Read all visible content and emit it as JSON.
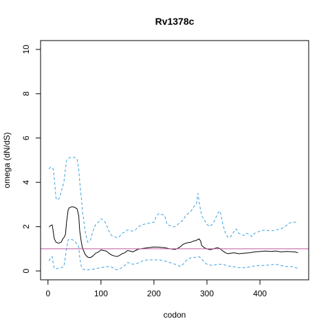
{
  "chart_data": {
    "type": "line",
    "title": "Rv1378c",
    "xlabel": "codon",
    "ylabel": "omega (dN/dS)",
    "xlim": [
      -14,
      492
    ],
    "ylim": [
      -0.4,
      10.4
    ],
    "x_ticks": [
      0,
      100,
      200,
      300,
      400
    ],
    "y_ticks": [
      0,
      2,
      4,
      6,
      8,
      10
    ],
    "reference_line": {
      "y": 1,
      "color": "#c0569e"
    },
    "grid": false,
    "legend": "none",
    "series": [
      {
        "style": "solid",
        "color": "#000000",
        "points": [
          [
            2,
            1.98
          ],
          [
            5,
            2.05
          ],
          [
            8,
            2.08
          ],
          [
            10,
            1.75
          ],
          [
            12,
            1.45
          ],
          [
            15,
            1.3
          ],
          [
            20,
            1.25
          ],
          [
            25,
            1.3
          ],
          [
            28,
            1.45
          ],
          [
            30,
            1.5
          ],
          [
            33,
            1.65
          ],
          [
            35,
            2.2
          ],
          [
            38,
            2.75
          ],
          [
            40,
            2.85
          ],
          [
            45,
            2.9
          ],
          [
            50,
            2.88
          ],
          [
            55,
            2.8
          ],
          [
            58,
            2.5
          ],
          [
            60,
            1.8
          ],
          [
            63,
            1.3
          ],
          [
            65,
            1.05
          ],
          [
            70,
            0.75
          ],
          [
            75,
            0.62
          ],
          [
            80,
            0.6
          ],
          [
            85,
            0.68
          ],
          [
            90,
            0.8
          ],
          [
            95,
            0.85
          ],
          [
            100,
            0.95
          ],
          [
            105,
            0.92
          ],
          [
            110,
            0.9
          ],
          [
            115,
            0.8
          ],
          [
            120,
            0.72
          ],
          [
            125,
            0.68
          ],
          [
            130,
            0.65
          ],
          [
            135,
            0.7
          ],
          [
            140,
            0.78
          ],
          [
            145,
            0.82
          ],
          [
            150,
            0.92
          ],
          [
            155,
            0.9
          ],
          [
            160,
            0.86
          ],
          [
            165,
            0.92
          ],
          [
            170,
            0.98
          ],
          [
            175,
            1.0
          ],
          [
            180,
            1.02
          ],
          [
            190,
            1.05
          ],
          [
            200,
            1.08
          ],
          [
            210,
            1.07
          ],
          [
            220,
            1.05
          ],
          [
            230,
            1.0
          ],
          [
            240,
            0.97
          ],
          [
            245,
            1.02
          ],
          [
            250,
            1.1
          ],
          [
            255,
            1.2
          ],
          [
            260,
            1.25
          ],
          [
            265,
            1.28
          ],
          [
            270,
            1.3
          ],
          [
            275,
            1.35
          ],
          [
            280,
            1.38
          ],
          [
            285,
            1.45
          ],
          [
            288,
            1.35
          ],
          [
            290,
            1.15
          ],
          [
            295,
            1.05
          ],
          [
            300,
            1.0
          ],
          [
            305,
            0.96
          ],
          [
            310,
            0.98
          ],
          [
            315,
            1.02
          ],
          [
            320,
            1.05
          ],
          [
            325,
            1.0
          ],
          [
            330,
            0.9
          ],
          [
            335,
            0.82
          ],
          [
            340,
            0.78
          ],
          [
            345,
            0.8
          ],
          [
            350,
            0.82
          ],
          [
            355,
            0.8
          ],
          [
            360,
            0.78
          ],
          [
            370,
            0.8
          ],
          [
            380,
            0.82
          ],
          [
            390,
            0.86
          ],
          [
            400,
            0.88
          ],
          [
            410,
            0.9
          ],
          [
            420,
            0.88
          ],
          [
            430,
            0.9
          ],
          [
            440,
            0.86
          ],
          [
            450,
            0.88
          ],
          [
            460,
            0.87
          ],
          [
            466,
            0.86
          ],
          [
            472,
            0.82
          ]
        ]
      },
      {
        "style": "dashed",
        "color": "#3aa0e0",
        "points": [
          [
            2,
            4.6
          ],
          [
            5,
            4.7
          ],
          [
            10,
            4.6
          ],
          [
            13,
            3.9
          ],
          [
            15,
            3.3
          ],
          [
            18,
            3.2
          ],
          [
            22,
            3.3
          ],
          [
            25,
            3.6
          ],
          [
            30,
            4.0
          ],
          [
            33,
            4.6
          ],
          [
            35,
            5.0
          ],
          [
            40,
            5.1
          ],
          [
            45,
            5.15
          ],
          [
            50,
            5.12
          ],
          [
            55,
            5.05
          ],
          [
            58,
            4.6
          ],
          [
            60,
            4.0
          ],
          [
            63,
            3.3
          ],
          [
            65,
            2.7
          ],
          [
            68,
            2.2
          ],
          [
            70,
            1.8
          ],
          [
            75,
            1.3
          ],
          [
            80,
            1.4
          ],
          [
            85,
            1.8
          ],
          [
            90,
            2.1
          ],
          [
            95,
            2.2
          ],
          [
            100,
            2.35
          ],
          [
            105,
            2.3
          ],
          [
            110,
            2.1
          ],
          [
            115,
            1.8
          ],
          [
            120,
            1.6
          ],
          [
            125,
            1.55
          ],
          [
            130,
            1.5
          ],
          [
            135,
            1.55
          ],
          [
            140,
            1.7
          ],
          [
            145,
            1.75
          ],
          [
            150,
            1.85
          ],
          [
            155,
            1.82
          ],
          [
            160,
            1.8
          ],
          [
            165,
            1.85
          ],
          [
            170,
            2.0
          ],
          [
            175,
            2.05
          ],
          [
            180,
            2.1
          ],
          [
            190,
            2.15
          ],
          [
            200,
            2.2
          ],
          [
            205,
            2.5
          ],
          [
            210,
            2.6
          ],
          [
            215,
            2.55
          ],
          [
            220,
            2.5
          ],
          [
            225,
            2.1
          ],
          [
            235,
            2.0
          ],
          [
            240,
            2.0
          ],
          [
            245,
            2.1
          ],
          [
            250,
            2.2
          ],
          [
            255,
            2.3
          ],
          [
            260,
            2.5
          ],
          [
            265,
            2.6
          ],
          [
            270,
            2.7
          ],
          [
            275,
            2.9
          ],
          [
            280,
            3.0
          ],
          [
            283,
            3.5
          ],
          [
            286,
            3.0
          ],
          [
            290,
            2.5
          ],
          [
            295,
            2.3
          ],
          [
            300,
            2.1
          ],
          [
            305,
            2.0
          ],
          [
            310,
            2.1
          ],
          [
            315,
            2.3
          ],
          [
            320,
            2.6
          ],
          [
            325,
            2.7
          ],
          [
            330,
            2.1
          ],
          [
            335,
            1.7
          ],
          [
            340,
            1.5
          ],
          [
            345,
            1.55
          ],
          [
            350,
            1.75
          ],
          [
            355,
            1.9
          ],
          [
            360,
            1.7
          ],
          [
            365,
            1.65
          ],
          [
            370,
            1.6
          ],
          [
            375,
            1.7
          ],
          [
            380,
            1.65
          ],
          [
            385,
            1.55
          ],
          [
            390,
            1.7
          ],
          [
            400,
            1.8
          ],
          [
            410,
            1.85
          ],
          [
            420,
            1.8
          ],
          [
            430,
            1.85
          ],
          [
            440,
            1.9
          ],
          [
            450,
            2.05
          ],
          [
            455,
            2.15
          ],
          [
            460,
            2.2
          ],
          [
            466,
            2.2
          ],
          [
            472,
            2.2
          ]
        ]
      },
      {
        "style": "dashed",
        "color": "#3aa0e0",
        "points": [
          [
            2,
            0.45
          ],
          [
            5,
            0.6
          ],
          [
            8,
            0.65
          ],
          [
            10,
            0.3
          ],
          [
            12,
            0.12
          ],
          [
            15,
            0.1
          ],
          [
            20,
            0.12
          ],
          [
            25,
            0.15
          ],
          [
            30,
            0.2
          ],
          [
            35,
            1.0
          ],
          [
            38,
            1.4
          ],
          [
            42,
            1.45
          ],
          [
            47,
            1.4
          ],
          [
            52,
            1.3
          ],
          [
            58,
            1.1
          ],
          [
            60,
            0.6
          ],
          [
            63,
            0.2
          ],
          [
            65,
            0.1
          ],
          [
            70,
            0.05
          ],
          [
            75,
            0.05
          ],
          [
            80,
            0.07
          ],
          [
            90,
            0.1
          ],
          [
            100,
            0.15
          ],
          [
            110,
            0.2
          ],
          [
            120,
            0.18
          ],
          [
            125,
            0.1
          ],
          [
            130,
            0.05
          ],
          [
            140,
            0.15
          ],
          [
            145,
            0.25
          ],
          [
            150,
            0.38
          ],
          [
            155,
            0.35
          ],
          [
            160,
            0.3
          ],
          [
            170,
            0.35
          ],
          [
            175,
            0.4
          ],
          [
            180,
            0.48
          ],
          [
            190,
            0.5
          ],
          [
            200,
            0.5
          ],
          [
            210,
            0.5
          ],
          [
            220,
            0.45
          ],
          [
            230,
            0.38
          ],
          [
            240,
            0.3
          ],
          [
            245,
            0.25
          ],
          [
            250,
            0.2
          ],
          [
            255,
            0.3
          ],
          [
            260,
            0.45
          ],
          [
            265,
            0.55
          ],
          [
            270,
            0.6
          ],
          [
            280,
            0.62
          ],
          [
            285,
            0.65
          ],
          [
            290,
            0.55
          ],
          [
            295,
            0.4
          ],
          [
            300,
            0.3
          ],
          [
            310,
            0.25
          ],
          [
            320,
            0.3
          ],
          [
            330,
            0.3
          ],
          [
            340,
            0.22
          ],
          [
            350,
            0.2
          ],
          [
            360,
            0.15
          ],
          [
            370,
            0.15
          ],
          [
            380,
            0.18
          ],
          [
            390,
            0.22
          ],
          [
            400,
            0.25
          ],
          [
            410,
            0.25
          ],
          [
            420,
            0.28
          ],
          [
            430,
            0.3
          ],
          [
            440,
            0.25
          ],
          [
            450,
            0.2
          ],
          [
            460,
            0.2
          ],
          [
            466,
            0.15
          ],
          [
            472,
            0.12
          ]
        ]
      }
    ]
  }
}
